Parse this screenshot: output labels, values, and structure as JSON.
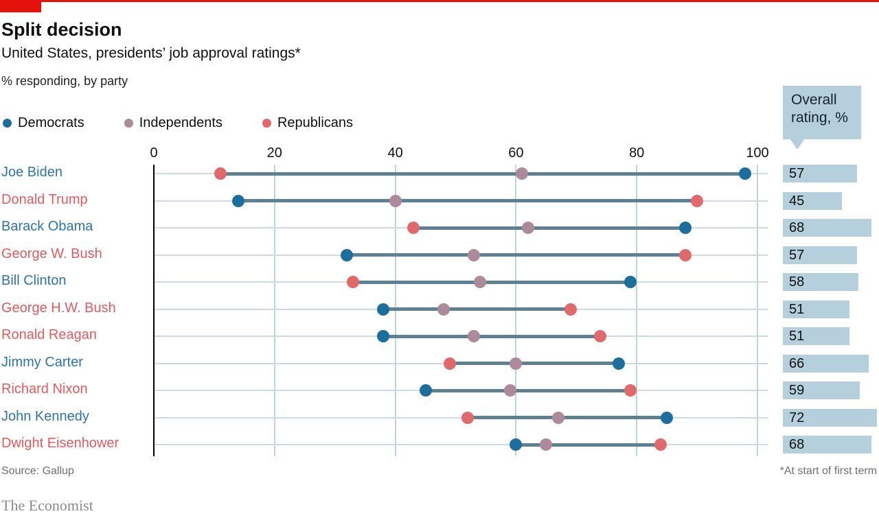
{
  "header": {
    "title": "Split decision",
    "subtitle": "United States, presidents’ job approval ratings*",
    "note": "% responding, by party"
  },
  "legend": {
    "items": [
      {
        "label": "Democrats",
        "color": "#1c6e9c"
      },
      {
        "label": "Independents",
        "color": "#ad8a99"
      },
      {
        "label": "Republicans",
        "color": "#e06a6b"
      }
    ]
  },
  "overall_box": {
    "line1": "Overall",
    "line2": "rating, %"
  },
  "chart_data": {
    "type": "scatter",
    "subtype": "dumbbell-dot-plot",
    "xlabel": "% responding",
    "x_range": [
      0,
      100
    ],
    "x_ticks": [
      0,
      20,
      40,
      60,
      80,
      100
    ],
    "grid": true,
    "legend_position": "top-left",
    "series_names": [
      "Democrats",
      "Independents",
      "Republicans"
    ],
    "rows": [
      {
        "president": "Joe Biden",
        "party": "Democratic",
        "democrats": 98,
        "independents": 61,
        "republicans": 11,
        "overall": 57
      },
      {
        "president": "Donald Trump",
        "party": "Republican",
        "democrats": 14,
        "independents": 40,
        "republicans": 90,
        "overall": 45
      },
      {
        "president": "Barack Obama",
        "party": "Democratic",
        "democrats": 88,
        "independents": 62,
        "republicans": 43,
        "overall": 68
      },
      {
        "president": "George W. Bush",
        "party": "Republican",
        "democrats": 32,
        "independents": 53,
        "republicans": 88,
        "overall": 57
      },
      {
        "president": "Bill Clinton",
        "party": "Democratic",
        "democrats": 79,
        "independents": 54,
        "republicans": 33,
        "overall": 58
      },
      {
        "president": "George H.W. Bush",
        "party": "Republican",
        "democrats": 38,
        "independents": 48,
        "republicans": 69,
        "overall": 51
      },
      {
        "president": "Ronald Reagan",
        "party": "Republican",
        "democrats": 38,
        "independents": 53,
        "republicans": 74,
        "overall": 51
      },
      {
        "president": "Jimmy Carter",
        "party": "Democratic",
        "democrats": 77,
        "independents": 60,
        "republicans": 49,
        "overall": 66
      },
      {
        "president": "Richard Nixon",
        "party": "Republican",
        "democrats": 45,
        "independents": 59,
        "republicans": 79,
        "overall": 59
      },
      {
        "president": "John Kennedy",
        "party": "Democratic",
        "democrats": 85,
        "independents": 67,
        "republicans": 52,
        "overall": 72
      },
      {
        "president": "Dwight Eisenhower",
        "party": "Republican",
        "democrats": 60,
        "independents": 65,
        "republicans": 84,
        "overall": 68
      }
    ]
  },
  "footer": {
    "source": "Source: Gallup",
    "footnote": "*At start of first term",
    "brand": "The Economist"
  },
  "colors": {
    "economist_red": "#e3120b",
    "dem_dot": "#1c6e9c",
    "ind_dot": "#ad8a99",
    "rep_dot": "#e06a6b",
    "dem_label": "#2d74a9",
    "rep_label": "#e25a5e",
    "connector": "#5e8093",
    "h_gridline": "#ccdae2",
    "v_gridline": "#bed3de",
    "bar_bg": "#b5cfdd"
  }
}
